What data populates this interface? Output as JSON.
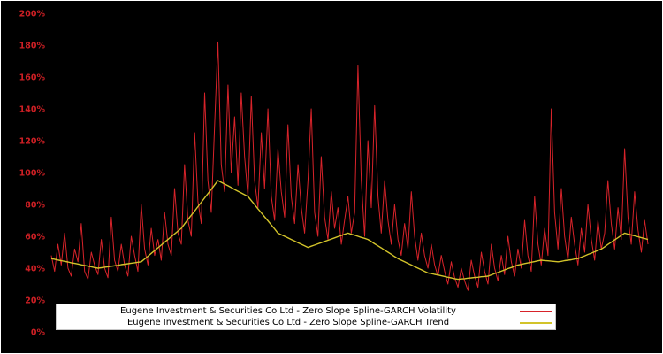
{
  "chart_data": {
    "type": "line",
    "title": "",
    "xlabel": "",
    "ylabel": "",
    "ylim": [
      0,
      200
    ],
    "ytick_step": 20,
    "ytick_labels": [
      "0%",
      "20%",
      "40%",
      "60%",
      "80%",
      "100%",
      "120%",
      "140%",
      "160%",
      "180%",
      "200%"
    ],
    "grid": false,
    "legend_position": "bottom-center",
    "background": "#000000",
    "tick_label_color": "#cc1f24",
    "series": [
      {
        "name": "Eugene Investment & Securities Co Ltd - Zero Slope Spline-GARCH Volatility",
        "color": "#d8232a",
        "values": [
          48,
          38,
          55,
          42,
          62,
          40,
          35,
          52,
          44,
          68,
          38,
          33,
          50,
          42,
          36,
          58,
          40,
          34,
          72,
          45,
          38,
          55,
          42,
          35,
          60,
          48,
          38,
          80,
          52,
          42,
          65,
          48,
          58,
          45,
          75,
          55,
          48,
          90,
          62,
          55,
          105,
          70,
          60,
          125,
          82,
          68,
          150,
          95,
          75,
          130,
          182,
          105,
          88,
          155,
          100,
          135,
          92,
          150,
          110,
          85,
          148,
          95,
          78,
          125,
          90,
          140,
          85,
          70,
          115,
          88,
          72,
          130,
          85,
          68,
          105,
          78,
          62,
          95,
          140,
          75,
          60,
          110,
          72,
          58,
          88,
          65,
          78,
          55,
          70,
          85,
          62,
          75,
          167,
          95,
          60,
          120,
          78,
          142,
          85,
          62,
          95,
          70,
          55,
          80,
          58,
          48,
          68,
          52,
          88,
          60,
          45,
          62,
          48,
          40,
          55,
          42,
          35,
          48,
          38,
          30,
          44,
          34,
          28,
          40,
          32,
          26,
          45,
          35,
          28,
          50,
          38,
          30,
          55,
          40,
          32,
          48,
          36,
          60,
          44,
          35,
          52,
          40,
          70,
          48,
          38,
          85,
          55,
          42,
          65,
          48,
          140,
          75,
          52,
          90,
          60,
          45,
          72,
          55,
          42,
          65,
          50,
          80,
          58,
          45,
          70,
          52,
          62,
          95,
          68,
          52,
          78,
          58,
          115,
          72,
          55,
          88,
          64,
          50,
          70,
          55
        ]
      },
      {
        "name": "Eugene Investment & Securities Co Ltd - Zero Slope Spline-GARCH Trend",
        "color": "#d2c32a",
        "values": [
          46.0,
          45.6,
          45.1,
          44.7,
          44.3,
          43.9,
          43.4,
          43.0,
          42.6,
          42.1,
          41.7,
          41.3,
          40.9,
          40.4,
          40.0,
          40.3,
          40.6,
          40.9,
          41.2,
          41.5,
          41.8,
          42.2,
          42.5,
          42.8,
          43.1,
          43.4,
          43.7,
          44.0,
          45.8,
          47.5,
          49.3,
          51.0,
          52.8,
          54.5,
          56.3,
          58.0,
          59.8,
          61.5,
          63.3,
          65.0,
          67.7,
          70.5,
          73.2,
          75.9,
          78.6,
          81.4,
          84.1,
          86.8,
          89.5,
          92.3,
          95.0,
          93.9,
          92.8,
          91.7,
          90.6,
          89.4,
          88.3,
          87.2,
          86.1,
          85.0,
          82.4,
          79.9,
          77.3,
          74.8,
          72.2,
          69.7,
          67.1,
          64.6,
          62.0,
          61.0,
          60.0,
          59.0,
          58.0,
          57.0,
          56.0,
          55.0,
          54.0,
          53.0,
          53.8,
          54.5,
          55.3,
          56.0,
          56.8,
          57.5,
          58.3,
          59.0,
          59.8,
          60.5,
          61.3,
          62.0,
          61.3,
          60.7,
          60.0,
          59.3,
          58.7,
          58.0,
          56.7,
          55.3,
          54.0,
          52.7,
          51.3,
          50.0,
          48.7,
          47.3,
          46.0,
          45.0,
          44.0,
          43.0,
          42.0,
          41.0,
          40.0,
          39.0,
          38.0,
          37.0,
          36.6,
          36.1,
          35.7,
          35.2,
          34.8,
          34.3,
          33.9,
          33.4,
          33.0,
          33.2,
          33.4,
          33.7,
          33.9,
          34.1,
          34.3,
          34.6,
          34.8,
          35.0,
          35.8,
          36.6,
          37.3,
          38.1,
          38.9,
          39.7,
          40.4,
          41.2,
          42.0,
          42.4,
          42.9,
          43.3,
          43.7,
          44.1,
          44.6,
          45.0,
          44.8,
          44.6,
          44.4,
          44.2,
          44.0,
          44.3,
          44.7,
          45.0,
          45.3,
          45.7,
          46.0,
          46.9,
          47.7,
          48.6,
          49.4,
          50.3,
          51.1,
          52.0,
          53.4,
          54.9,
          56.3,
          57.7,
          59.1,
          60.6,
          62.0,
          61.4,
          60.9,
          60.3,
          59.7,
          59.1,
          58.6,
          58.0
        ]
      }
    ]
  }
}
